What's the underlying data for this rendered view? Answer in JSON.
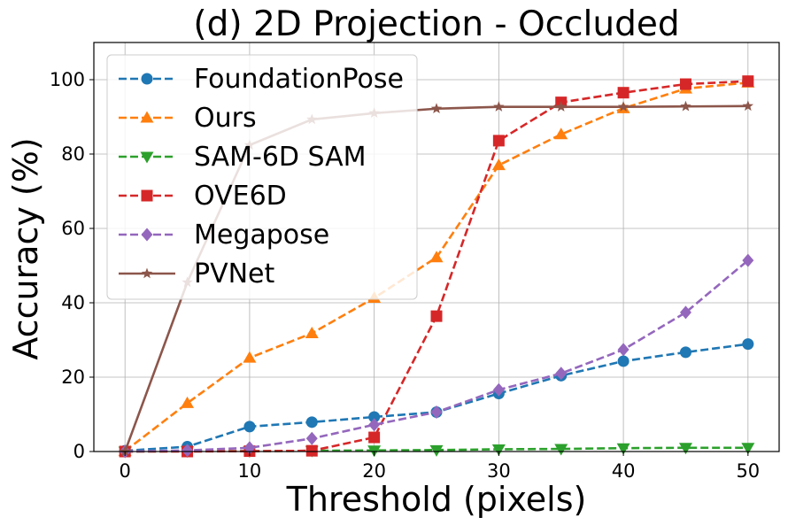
{
  "chart_data": {
    "type": "line",
    "title": "(d) 2D Projection - Occluded",
    "xlabel": "Threshold (pixels)",
    "ylabel": "Accuracy (%)",
    "xlim": [
      -2.5,
      52.5
    ],
    "ylim": [
      0,
      110
    ],
    "xticks": [
      0,
      10,
      20,
      30,
      40,
      50
    ],
    "yticks": [
      0,
      20,
      40,
      60,
      80,
      100
    ],
    "xtick_labels": [
      "0",
      "10",
      "20",
      "30",
      "40",
      "50"
    ],
    "ytick_labels": [
      "0",
      "20",
      "40",
      "60",
      "80",
      "100"
    ],
    "grid": true,
    "legend_position": "upper-left",
    "x": [
      0,
      5,
      10,
      15,
      20,
      25,
      30,
      35,
      40,
      45,
      50
    ],
    "series": [
      {
        "name": "FoundationPose",
        "color": "#1f77b4",
        "dash": "dashed",
        "marker": "circle",
        "values": [
          0.2,
          1.3,
          6.7,
          7.9,
          9.3,
          10.6,
          15.6,
          20.4,
          24.3,
          26.7,
          28.9
        ]
      },
      {
        "name": "Ours",
        "color": "#ff7f0e",
        "dash": "dashed",
        "marker": "triangle-up",
        "values": [
          0.1,
          13.0,
          25.2,
          31.8,
          41.3,
          52.2,
          77.0,
          85.3,
          92.3,
          97.6,
          99.2
        ]
      },
      {
        "name": "SAM-6D SAM",
        "color": "#2ca02c",
        "dash": "dashed",
        "marker": "triangle-down",
        "values": [
          0.0,
          0.1,
          0.1,
          0.2,
          0.3,
          0.4,
          0.6,
          0.7,
          0.9,
          1.0,
          1.0
        ]
      },
      {
        "name": "OVE6D",
        "color": "#d62728",
        "dash": "dashed",
        "marker": "square",
        "values": [
          0.0,
          0.0,
          0.1,
          0.2,
          3.8,
          36.4,
          83.6,
          93.9,
          96.5,
          98.8,
          99.6
        ]
      },
      {
        "name": "Megapose",
        "color": "#9467bd",
        "dash": "dashed",
        "marker": "diamond",
        "values": [
          0.0,
          0.3,
          1.0,
          3.5,
          7.2,
          10.6,
          16.6,
          21.0,
          27.4,
          37.4,
          51.4
        ]
      },
      {
        "name": "PVNet",
        "color": "#8c564b",
        "dash": "solid",
        "marker": "star",
        "values": [
          0.0,
          45.5,
          82.4,
          89.3,
          91.0,
          92.2,
          92.7,
          92.7,
          92.7,
          92.8,
          92.9
        ]
      }
    ]
  }
}
